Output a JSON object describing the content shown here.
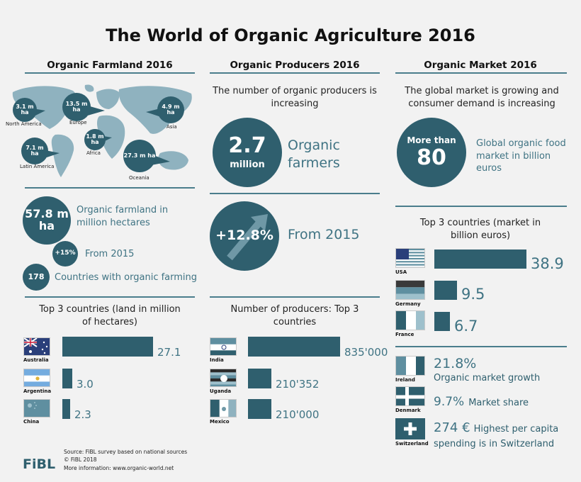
{
  "title": "The World of Organic Agriculture 2016",
  "columns": {
    "farmland": "Organic Farmland 2016",
    "producers": "Organic Producers 2016",
    "market": "Organic Market 2016"
  },
  "farmland": {
    "regions": [
      {
        "value": "3.1 m ha",
        "name": "North America"
      },
      {
        "value": "13.5 m ha",
        "name": "Europe"
      },
      {
        "value": "4.9 m ha",
        "name": "Asia"
      },
      {
        "value": "1.8 m ha",
        "name": "Africa"
      },
      {
        "value": "7.1 m ha",
        "name": "Latin America"
      },
      {
        "value": "27.3 m ha",
        "name": "Oceania"
      }
    ],
    "total_value": "57.8 m ha",
    "total_text": "Organic farmland in million hectares",
    "growth_value": "+15%",
    "growth_text": "From 2015",
    "countries_value": "178",
    "countries_text": "Countries with organic farming",
    "top3_title": "Top 3 countries (land in million of hectares)",
    "top3": [
      {
        "country": "Australia",
        "value": 27.1,
        "label": "27.1"
      },
      {
        "country": "Argentina",
        "value": 3.0,
        "label": "3.0"
      },
      {
        "country": "China",
        "value": 2.3,
        "label": "2.3"
      }
    ]
  },
  "producers": {
    "headline": "The number of organic producers is increasing",
    "count_value": "2.7",
    "count_unit": "million",
    "count_text": "Organic farmers",
    "growth_value": "+12.8%",
    "growth_text": "From 2015",
    "top3_title": "Number of producers: Top 3 countries",
    "top3": [
      {
        "country": "India",
        "value": 835000,
        "label": "835'000"
      },
      {
        "country": "Uganda",
        "value": 210352,
        "label": "210'352"
      },
      {
        "country": "Mexico",
        "value": 210000,
        "label": "210'000"
      }
    ]
  },
  "market": {
    "headline": "The global market is growing and consumer demand is increasing",
    "size_top": "More than",
    "size_value": "80",
    "size_text": "Global organic food market in billion euros",
    "top3_title": "Top 3 countries (market in billion euros)",
    "top3": [
      {
        "country": "USA",
        "value": 38.9,
        "label": "38.9"
      },
      {
        "country": "Germany",
        "value": 9.5,
        "label": "9.5"
      },
      {
        "country": "France",
        "value": 6.7,
        "label": "6.7"
      }
    ],
    "facts": [
      {
        "country": "Ireland",
        "value": "21.8%",
        "text": "Organic market growth"
      },
      {
        "country": "Denmark",
        "value": "9.7%",
        "text": "Market share"
      },
      {
        "country": "Switzerland",
        "value": "274 €",
        "text": "Highest per capita spending is in Switzerland"
      }
    ]
  },
  "footer": {
    "logo": "FiBL",
    "source": "Source: FiBL survey based on national sources",
    "copyright": "© FiBL 2018",
    "more": "More information: www.organic-world.net"
  },
  "colors": {
    "accent": "#2f5f6e",
    "rule": "#4a7d8c",
    "background": "#f2f2f2"
  }
}
